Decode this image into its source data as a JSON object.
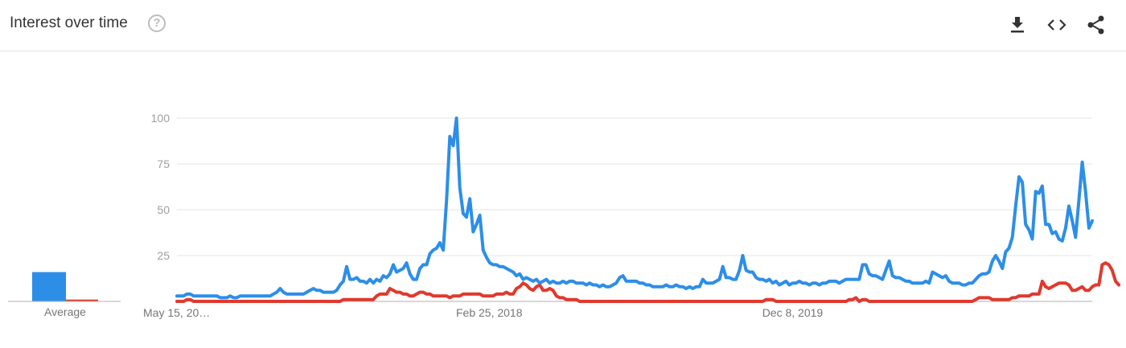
{
  "header": {
    "title": "Interest over time",
    "help_icon": "help-circle-icon",
    "actions": [
      {
        "name": "download-icon"
      },
      {
        "name": "embed-code-icon"
      },
      {
        "name": "share-icon"
      }
    ]
  },
  "average": {
    "label": "Average",
    "series": [
      {
        "value": 16,
        "color": "#2d8ee8"
      },
      {
        "value": 1,
        "color": "#e0392e"
      }
    ]
  },
  "chart_data": {
    "type": "line",
    "ylim": [
      0,
      100
    ],
    "y_ticks": [
      "25",
      "50",
      "75",
      "100"
    ],
    "y_tick_values": [
      25,
      50,
      75,
      100
    ],
    "x_tick_labels": [
      "May 15, 20…",
      "Feb 25, 2018",
      "Dec 8, 2019"
    ],
    "x_tick_index": [
      0,
      94,
      186
    ],
    "grid": true,
    "series": [
      {
        "color": "#2d8ee8",
        "values": [
          3,
          3,
          3,
          4,
          4,
          3,
          3,
          3,
          3,
          3,
          3,
          3,
          3,
          2,
          2,
          2,
          3,
          2,
          2,
          3,
          3,
          3,
          3,
          3,
          3,
          3,
          3,
          3,
          3,
          4,
          5,
          7,
          5,
          4,
          4,
          4,
          4,
          4,
          4,
          5,
          6,
          7,
          6,
          6,
          5,
          5,
          5,
          5,
          6,
          9,
          11,
          19,
          12,
          12,
          13,
          11,
          11,
          10,
          12,
          10,
          12,
          11,
          14,
          13,
          15,
          20,
          16,
          17,
          18,
          21,
          15,
          12,
          12,
          18,
          20,
          20,
          26,
          28,
          29,
          32,
          28,
          55,
          90,
          85,
          100,
          62,
          48,
          46,
          56,
          38,
          42,
          47,
          28,
          24,
          21,
          20,
          20,
          19,
          19,
          18,
          17,
          16,
          14,
          15,
          12,
          13,
          12,
          11,
          12,
          10,
          11,
          12,
          10,
          11,
          10,
          10,
          11,
          10,
          11,
          11,
          10,
          10,
          10,
          9,
          10,
          9,
          9,
          8,
          9,
          8,
          8,
          9,
          10,
          13,
          14,
          11,
          11,
          11,
          11,
          10,
          10,
          9,
          9,
          8,
          8,
          8,
          8,
          9,
          8,
          8,
          9,
          8,
          8,
          7,
          8,
          7,
          8,
          8,
          12,
          10,
          10,
          10,
          11,
          12,
          19,
          13,
          13,
          12,
          12,
          17,
          25,
          17,
          16,
          16,
          13,
          12,
          12,
          11,
          12,
          10,
          11,
          9,
          10,
          11,
          9,
          10,
          10,
          11,
          10,
          10,
          9,
          10,
          10,
          9,
          10,
          10,
          11,
          11,
          11,
          10,
          11,
          12,
          12,
          12,
          12,
          12,
          20,
          20,
          15,
          14,
          14,
          13,
          12,
          17,
          22,
          14,
          13,
          13,
          12,
          11,
          11,
          10,
          10,
          10,
          10,
          11,
          10,
          16,
          15,
          14,
          13,
          14,
          11,
          10,
          10,
          10,
          9,
          9,
          10,
          10,
          12,
          14,
          15,
          15,
          16,
          22,
          25,
          22,
          18,
          27,
          29,
          35,
          52,
          68,
          65,
          42,
          39,
          34,
          60,
          59,
          63,
          42,
          42,
          37,
          38,
          34,
          33,
          40,
          52,
          44,
          35,
          55,
          76,
          60,
          40,
          44
        ]
      },
      {
        "color": "#e0392e",
        "values": [
          0,
          0,
          0,
          1,
          1,
          0,
          0,
          0,
          0,
          0,
          0,
          0,
          0,
          0,
          0,
          0,
          0,
          0,
          0,
          0,
          0,
          0,
          0,
          0,
          0,
          0,
          0,
          0,
          0,
          0,
          0,
          0,
          0,
          0,
          0,
          0,
          0,
          0,
          0,
          0,
          0,
          0,
          0,
          0,
          0,
          0,
          0,
          0,
          0,
          0,
          1,
          1,
          1,
          1,
          1,
          1,
          1,
          1,
          1,
          1,
          3,
          4,
          4,
          4,
          7,
          6,
          5,
          5,
          4,
          4,
          3,
          3,
          4,
          5,
          5,
          4,
          4,
          3,
          3,
          3,
          3,
          3,
          2,
          3,
          3,
          3,
          4,
          4,
          4,
          4,
          4,
          4,
          3,
          3,
          3,
          3,
          4,
          4,
          4,
          5,
          4,
          4,
          7,
          8,
          10,
          9,
          7,
          6,
          8,
          9,
          6,
          6,
          7,
          6,
          3,
          2,
          2,
          1,
          1,
          1,
          1,
          0,
          0,
          0,
          0,
          0,
          0,
          0,
          0,
          0,
          0,
          0,
          0,
          0,
          0,
          0,
          0,
          0,
          0,
          0,
          0,
          0,
          0,
          0,
          0,
          0,
          0,
          0,
          0,
          0,
          0,
          0,
          0,
          0,
          0,
          0,
          0,
          0,
          0,
          0,
          0,
          0,
          0,
          0,
          0,
          0,
          0,
          0,
          0,
          0,
          0,
          0,
          0,
          0,
          0,
          0,
          0,
          1,
          1,
          1,
          0,
          0,
          0,
          0,
          0,
          0,
          0,
          0,
          0,
          0,
          0,
          0,
          0,
          0,
          0,
          0,
          0,
          0,
          0,
          0,
          0,
          0,
          1,
          1,
          2,
          0,
          1,
          1,
          0,
          0,
          0,
          0,
          0,
          0,
          0,
          0,
          0,
          0,
          0,
          0,
          0,
          0,
          0,
          0,
          0,
          0,
          0,
          0,
          0,
          0,
          0,
          0,
          0,
          0,
          0,
          0,
          0,
          0,
          0,
          0,
          1,
          2,
          2,
          2,
          2,
          1,
          1,
          1,
          1,
          1,
          1,
          2,
          2,
          3,
          3,
          3,
          3,
          4,
          4,
          4,
          11,
          8,
          7,
          8,
          9,
          10,
          10,
          10,
          9,
          6,
          6,
          7,
          8,
          6,
          6,
          8,
          9,
          9,
          20,
          21,
          20,
          17,
          11,
          9
        ]
      }
    ]
  }
}
